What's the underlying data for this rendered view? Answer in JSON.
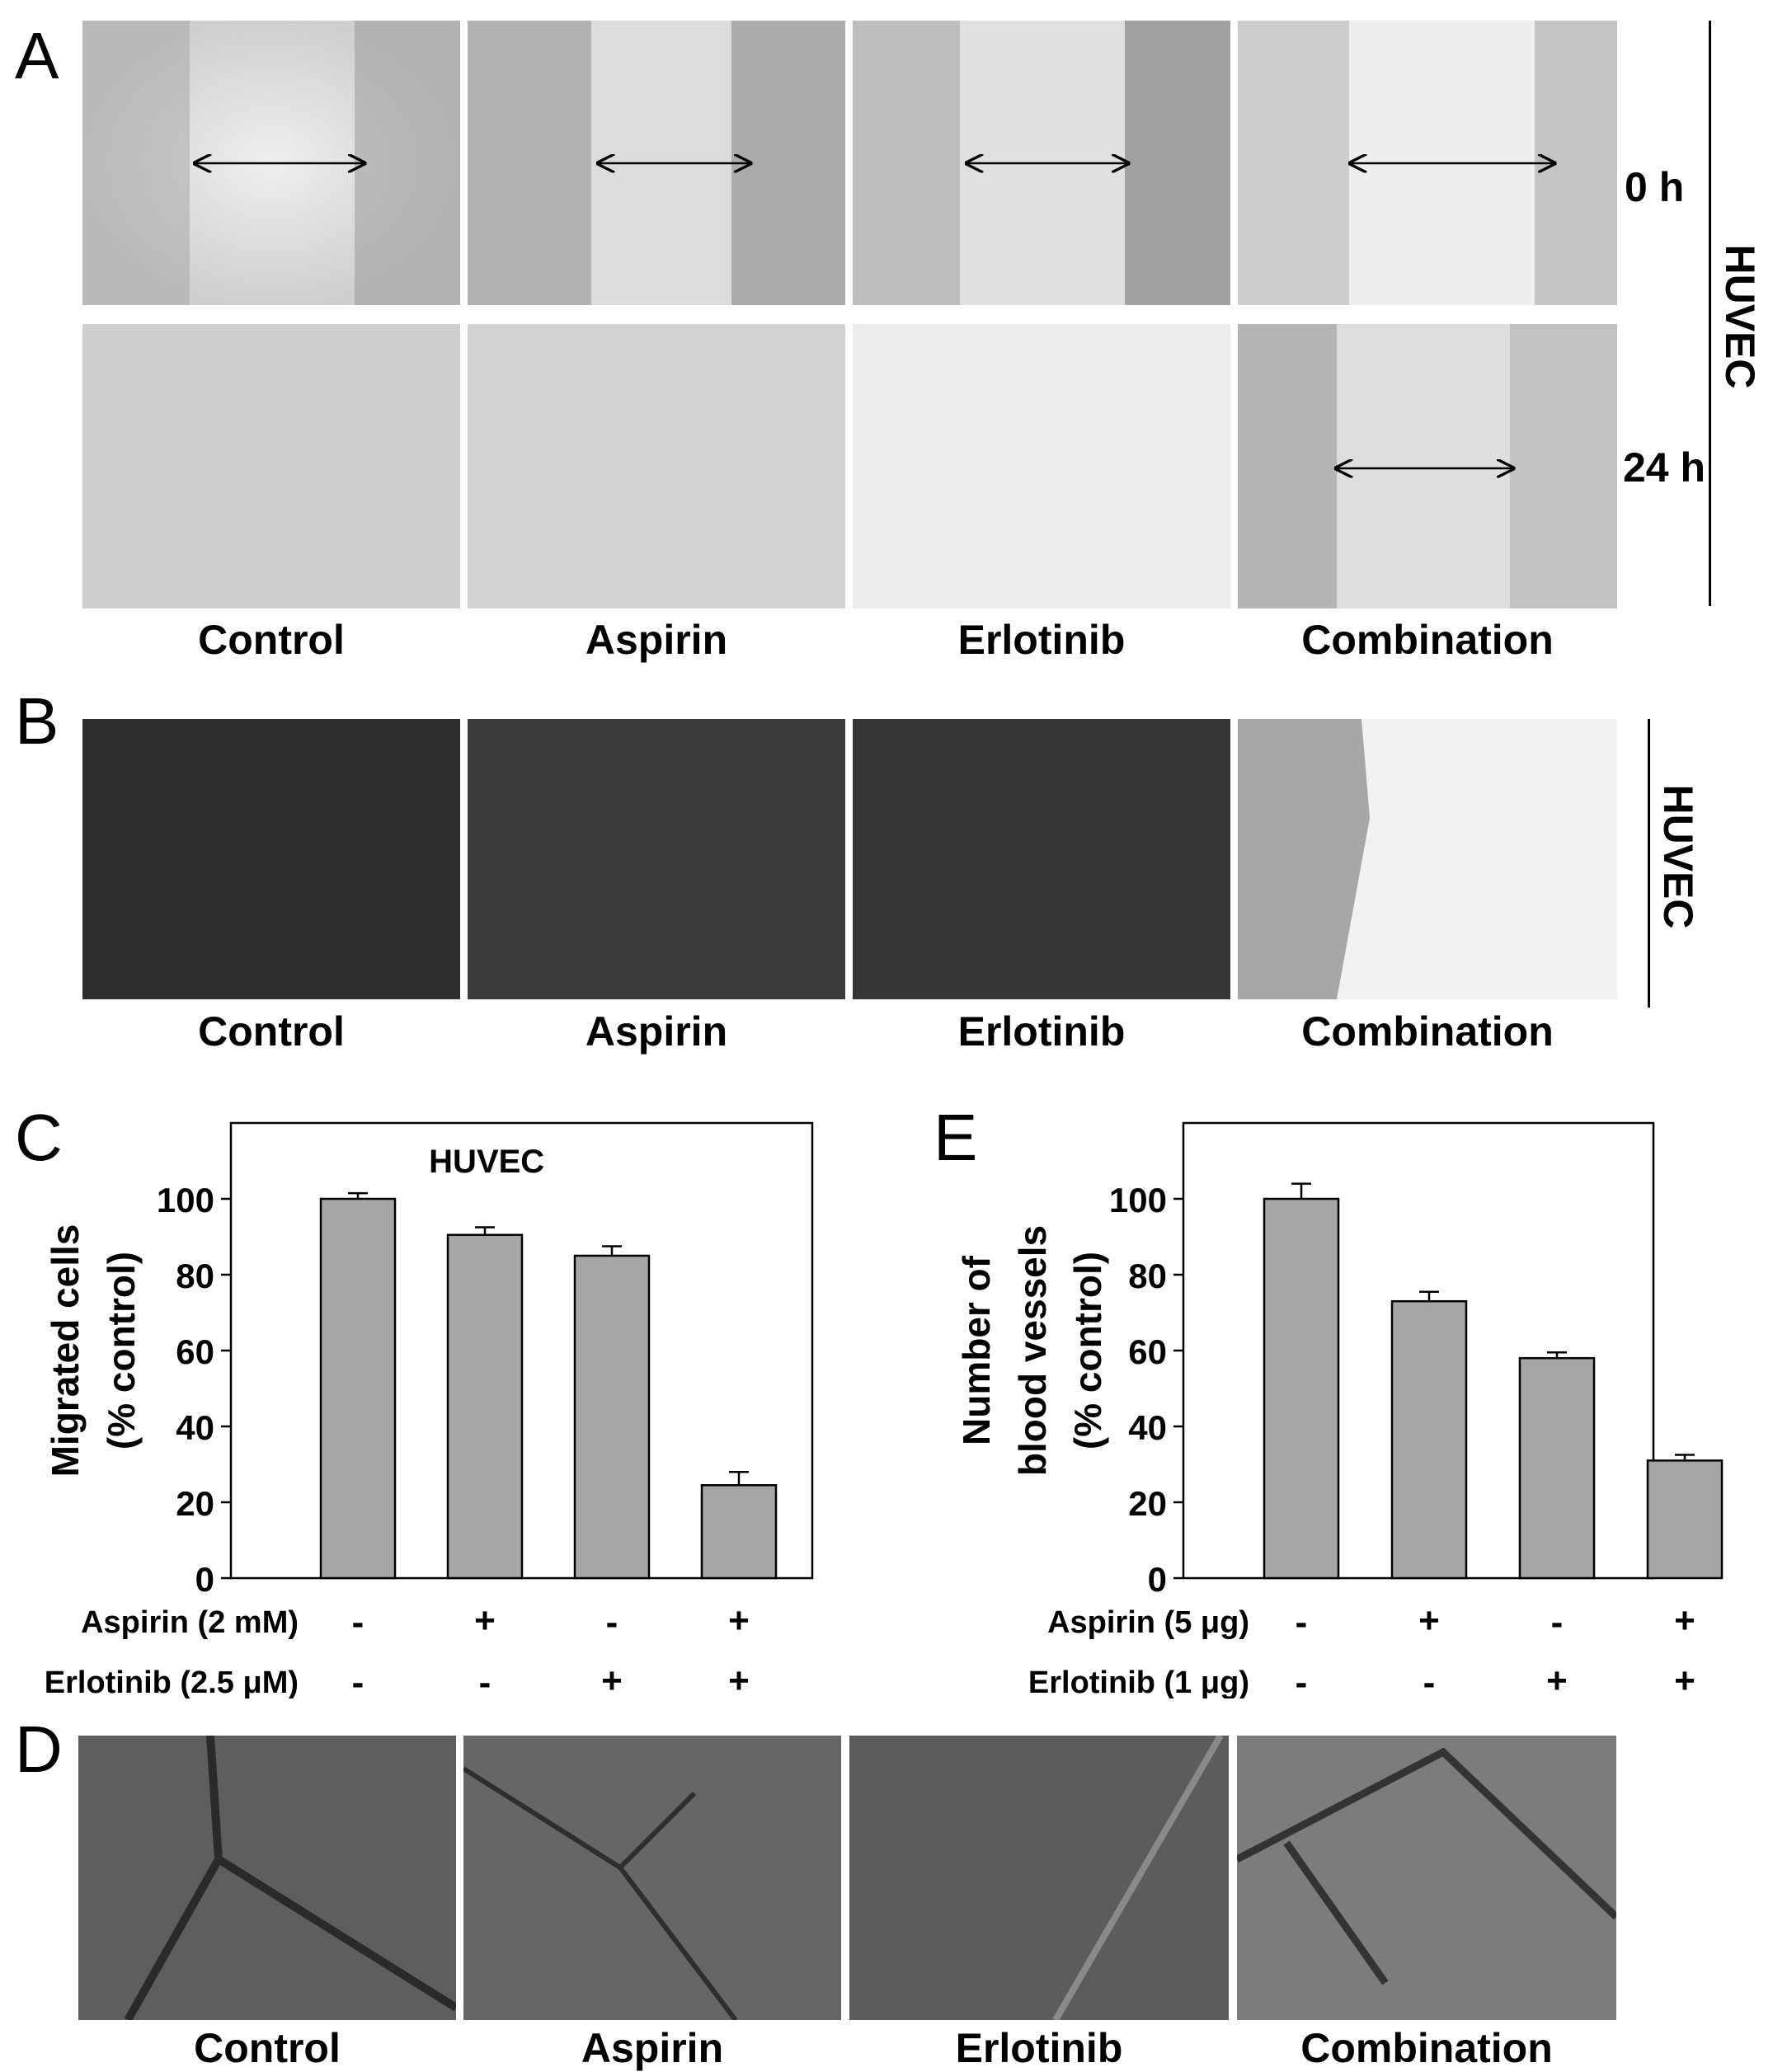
{
  "panels": {
    "A": {
      "letter": "A",
      "time_labels": [
        "0 h",
        "24 h"
      ],
      "side_label": "HUVEC",
      "captions": [
        "Control",
        "Aspirin",
        "Erlotinib",
        "Combination"
      ]
    },
    "B": {
      "letter": "B",
      "side_label": "HUVEC",
      "captions": [
        "Control",
        "Aspirin",
        "Erlotinib",
        "Combination"
      ]
    },
    "C": {
      "letter": "C"
    },
    "D": {
      "letter": "D",
      "captions": [
        "Control",
        "Aspirin",
        "Erlotinib",
        "Combination"
      ]
    },
    "E": {
      "letter": "E"
    }
  },
  "chart_data": [
    {
      "type": "bar",
      "panel": "C",
      "title": "HUVEC",
      "ylabel_line1": "Migrated cells",
      "ylabel_line2": "(% control)",
      "ylim": [
        0,
        120
      ],
      "yticks": [
        0,
        20,
        40,
        60,
        80,
        100
      ],
      "values": [
        100,
        90.5,
        85,
        24.5
      ],
      "errors": [
        1.5,
        2,
        2.5,
        3.5
      ],
      "bar_color": "#a6a6a6",
      "conditions": [
        {
          "label": "Aspirin (2 mM)",
          "signs": [
            "-",
            "+",
            "-",
            "+"
          ]
        },
        {
          "label": "Erlotinib (2.5 μM)",
          "signs": [
            "-",
            "-",
            "+",
            "+"
          ]
        }
      ]
    },
    {
      "type": "bar",
      "panel": "E",
      "title": "",
      "ylabel_line1": "Number of",
      "ylabel_line2": "blood vessels",
      "ylabel_line3": "(% control)",
      "ylim": [
        0,
        120
      ],
      "yticks": [
        0,
        20,
        40,
        60,
        80,
        100
      ],
      "values": [
        100,
        73,
        58,
        31
      ],
      "errors": [
        4,
        2.5,
        1.5,
        1.5
      ],
      "bar_color": "#a6a6a6",
      "conditions": [
        {
          "label": "Aspirin (5 μg)",
          "signs": [
            "-",
            "+",
            "-",
            "+"
          ]
        },
        {
          "label": "Erlotinib (1 μg)",
          "signs": [
            "-",
            "-",
            "+",
            "+"
          ]
        }
      ]
    }
  ]
}
